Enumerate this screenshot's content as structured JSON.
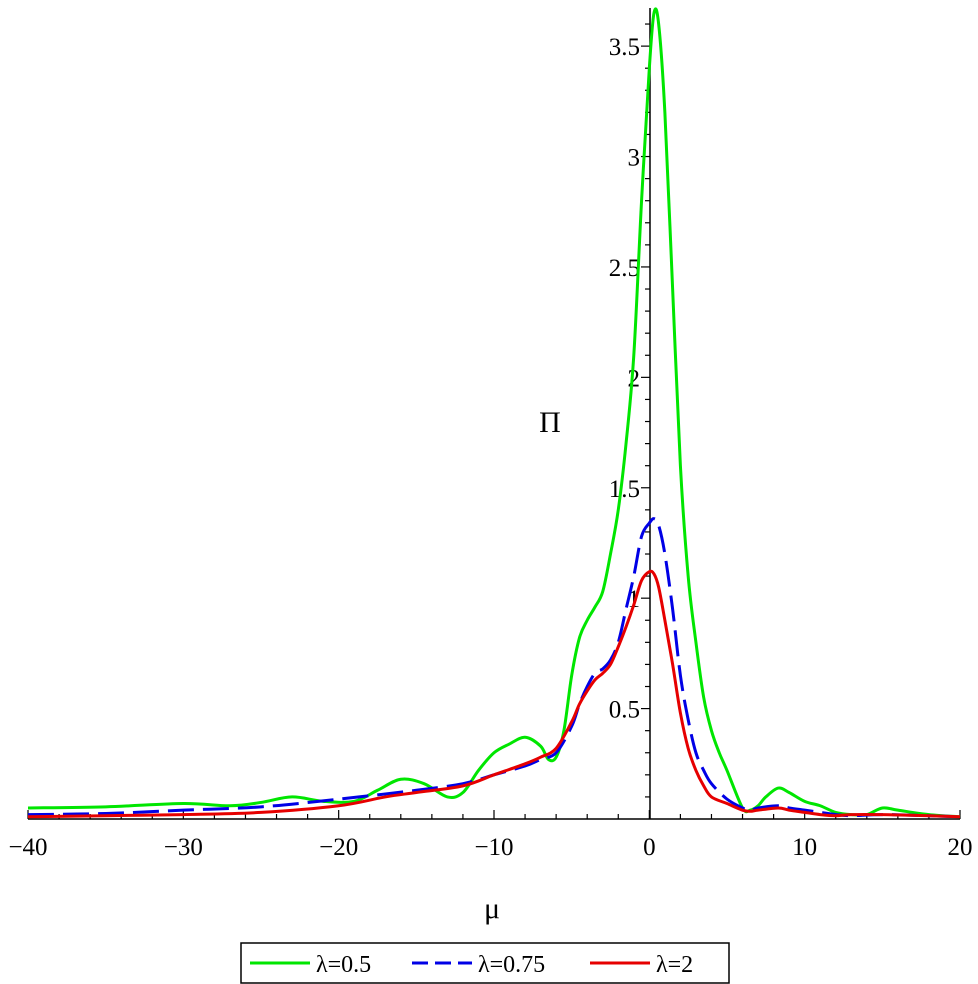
{
  "chart_data": {
    "type": "line",
    "title": "",
    "xlabel": "μ",
    "ylabel": "Π",
    "xlim": [
      -40,
      20
    ],
    "ylim": [
      0,
      3.65
    ],
    "x_ticks": [
      -40,
      -30,
      -20,
      -10,
      0,
      10,
      20
    ],
    "x_tick_labels": [
      "−40",
      "−30",
      "−20",
      "−10",
      "0",
      "10",
      "20"
    ],
    "y_ticks": [
      0.5,
      1,
      1.5,
      2,
      2.5,
      3,
      3.5
    ],
    "y_tick_labels": [
      "0.5",
      "1",
      "1.5",
      "2",
      "2.5",
      "3",
      "3.5"
    ],
    "grid": false,
    "legend_position": "bottom-center",
    "series": [
      {
        "name": "λ=0.5",
        "color": "#00e600",
        "dash": "solid",
        "x": [
          -40,
          -35,
          -30,
          -27,
          -25,
          -23,
          -21,
          -19,
          -17.5,
          -16,
          -14.5,
          -13,
          -12,
          -11,
          -10,
          -9,
          -8,
          -7,
          -6.5,
          -6,
          -5.5,
          -5,
          -4.5,
          -4,
          -3.5,
          -3,
          -2.5,
          -2,
          -1.5,
          -1,
          -0.5,
          0,
          0.3,
          0.6,
          1,
          1.5,
          2,
          2.5,
          3,
          3.5,
          4,
          4.5,
          5,
          6,
          6.5,
          7,
          7.5,
          8.3,
          9,
          10,
          11,
          12,
          13,
          14,
          15,
          16,
          18,
          20
        ],
        "y": [
          0.05,
          0.055,
          0.07,
          0.06,
          0.075,
          0.1,
          0.08,
          0.08,
          0.13,
          0.18,
          0.16,
          0.1,
          0.12,
          0.22,
          0.3,
          0.34,
          0.37,
          0.33,
          0.27,
          0.28,
          0.4,
          0.65,
          0.82,
          0.9,
          0.96,
          1.03,
          1.2,
          1.4,
          1.7,
          2.1,
          2.8,
          3.4,
          3.65,
          3.6,
          3.2,
          2.4,
          1.6,
          1.1,
          0.8,
          0.55,
          0.4,
          0.3,
          0.22,
          0.05,
          0.04,
          0.06,
          0.1,
          0.14,
          0.12,
          0.08,
          0.06,
          0.03,
          0.02,
          0.02,
          0.05,
          0.04,
          0.02,
          0.01
        ]
      },
      {
        "name": "λ=0.75",
        "color": "#0000e6",
        "dash": "long-dash",
        "x": [
          -40,
          -35,
          -30,
          -25,
          -20,
          -15,
          -12,
          -10,
          -8,
          -7,
          -6,
          -5,
          -4.5,
          -4,
          -3.5,
          -3,
          -2.5,
          -2,
          -1.5,
          -1,
          -0.5,
          0,
          0.3,
          0.6,
          1,
          1.5,
          2,
          2.5,
          3,
          3.5,
          4,
          5,
          6,
          6.5,
          7,
          8.3,
          9,
          10,
          11,
          12,
          13,
          15,
          18,
          20
        ],
        "y": [
          0.02,
          0.025,
          0.04,
          0.055,
          0.09,
          0.13,
          0.16,
          0.2,
          0.24,
          0.27,
          0.3,
          0.42,
          0.52,
          0.6,
          0.66,
          0.68,
          0.72,
          0.8,
          0.95,
          1.1,
          1.28,
          1.34,
          1.36,
          1.33,
          1.2,
          0.95,
          0.65,
          0.45,
          0.3,
          0.22,
          0.16,
          0.09,
          0.05,
          0.04,
          0.05,
          0.06,
          0.05,
          0.04,
          0.03,
          0.02,
          0.015,
          0.02,
          0.015,
          0.01
        ]
      },
      {
        "name": "λ=2",
        "color": "#e60000",
        "dash": "solid",
        "x": [
          -40,
          -35,
          -30,
          -25,
          -20,
          -17,
          -15,
          -12,
          -10,
          -8,
          -7,
          -6,
          -5,
          -4.5,
          -4,
          -3.5,
          -3,
          -2.5,
          -2,
          -1.5,
          -1,
          -0.5,
          0,
          0.3,
          0.6,
          1,
          1.5,
          2,
          2.5,
          3,
          3.5,
          4,
          5,
          6,
          6.5,
          7,
          8.3,
          9,
          10,
          11,
          12,
          13,
          15,
          18,
          20
        ],
        "y": [
          0.01,
          0.015,
          0.02,
          0.03,
          0.06,
          0.1,
          0.12,
          0.15,
          0.2,
          0.25,
          0.28,
          0.32,
          0.44,
          0.52,
          0.58,
          0.63,
          0.66,
          0.7,
          0.78,
          0.87,
          0.97,
          1.08,
          1.12,
          1.11,
          1.05,
          0.9,
          0.7,
          0.48,
          0.32,
          0.22,
          0.15,
          0.1,
          0.07,
          0.04,
          0.035,
          0.04,
          0.05,
          0.04,
          0.03,
          0.02,
          0.015,
          0.02,
          0.02,
          0.015,
          0.01
        ]
      }
    ]
  }
}
